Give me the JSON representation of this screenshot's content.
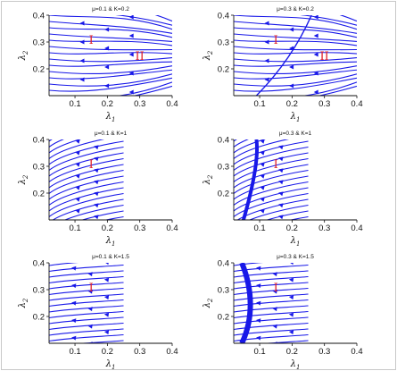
{
  "colors": {
    "flow": "#1818e8",
    "annotation": "#e0202a",
    "axis": "#111111",
    "frame": "#c8c8c8"
  },
  "chart_data": [
    {
      "type": "streamplot",
      "title": "μ=0.1 & K=0.2",
      "xlabel": "λ",
      "xlabel_sub": "1",
      "ylabel": "λ",
      "ylabel_sub": "2",
      "xlim": [
        0.02,
        0.4
      ],
      "ylim": [
        0.1,
        0.4
      ],
      "xticks": [
        "0.1",
        "0.2",
        "0.3",
        "0.4"
      ],
      "yticks": [
        "0.2",
        "0.3",
        "0.4"
      ],
      "annotations": [
        {
          "text": "I",
          "x": 0.15,
          "y": 0.31
        },
        {
          "text": "II",
          "x": 0.3,
          "y": 0.25
        }
      ],
      "separatrix": false,
      "mode": "fan",
      "stream_xmax": 0.4
    },
    {
      "type": "streamplot",
      "title": "μ=0.3 & K=0.2",
      "xlabel": "λ",
      "xlabel_sub": "1",
      "ylabel": "λ",
      "ylabel_sub": "2",
      "xlim": [
        0.02,
        0.4
      ],
      "ylim": [
        0.1,
        0.4
      ],
      "xticks": [
        "0.1",
        "0.2",
        "0.3",
        "0.4"
      ],
      "yticks": [
        "0.2",
        "0.3",
        "0.4"
      ],
      "annotations": [
        {
          "text": "I",
          "x": 0.15,
          "y": 0.31
        },
        {
          "text": "II",
          "x": 0.3,
          "y": 0.25
        }
      ],
      "separatrix": true,
      "mode": "fan",
      "stream_xmax": 0.4
    },
    {
      "type": "streamplot",
      "title": "μ=0.1 & K=1",
      "xlabel": "λ",
      "xlabel_sub": "1",
      "ylabel": "λ",
      "ylabel_sub": "2",
      "xlim": [
        0.02,
        0.4
      ],
      "ylim": [
        0.1,
        0.4
      ],
      "xticks": [
        "0.1",
        "0.2",
        "0.3",
        "0.4"
      ],
      "yticks": [
        "0.2",
        "0.3",
        "0.4"
      ],
      "annotations": [
        {
          "text": "I",
          "x": 0.15,
          "y": 0.31
        }
      ],
      "separatrix": false,
      "mode": "curve",
      "stream_xmax": 0.25
    },
    {
      "type": "streamplot",
      "title": "μ=0.3 & K=1",
      "xlabel": "λ",
      "xlabel_sub": "1",
      "ylabel": "λ",
      "ylabel_sub": "2",
      "xlim": [
        0.02,
        0.4
      ],
      "ylim": [
        0.1,
        0.4
      ],
      "xticks": [
        "0.1",
        "0.2",
        "0.3",
        "0.4"
      ],
      "yticks": [
        "0.2",
        "0.3",
        "0.4"
      ],
      "annotations": [
        {
          "text": "I",
          "x": 0.15,
          "y": 0.31
        }
      ],
      "separatrix": true,
      "mode": "curve",
      "stream_xmax": 0.25
    },
    {
      "type": "streamplot",
      "title": "μ=0.1 & K=1.5",
      "xlabel": "λ",
      "xlabel_sub": "1",
      "ylabel": "λ",
      "ylabel_sub": "2",
      "xlim": [
        0.02,
        0.4
      ],
      "ylim": [
        0.1,
        0.4
      ],
      "xticks": [
        "0.1",
        "0.2",
        "0.3",
        "0.4"
      ],
      "yticks": [
        "0.2",
        "0.3",
        "0.4"
      ],
      "annotations": [
        {
          "text": "I",
          "x": 0.15,
          "y": 0.31
        }
      ],
      "separatrix": false,
      "mode": "flat",
      "stream_xmax": 0.25
    },
    {
      "type": "streamplot",
      "title": "μ=0.3 & K=1.5",
      "xlabel": "λ",
      "xlabel_sub": "1",
      "ylabel": "λ",
      "ylabel_sub": "2",
      "xlim": [
        0.02,
        0.4
      ],
      "ylim": [
        0.1,
        0.4
      ],
      "xticks": [
        "0.1",
        "0.2",
        "0.3",
        "0.4"
      ],
      "yticks": [
        "0.2",
        "0.3",
        "0.4"
      ],
      "annotations": [
        {
          "text": "I",
          "x": 0.15,
          "y": 0.31
        }
      ],
      "separatrix": true,
      "mode": "flat",
      "stream_xmax": 0.25
    }
  ]
}
